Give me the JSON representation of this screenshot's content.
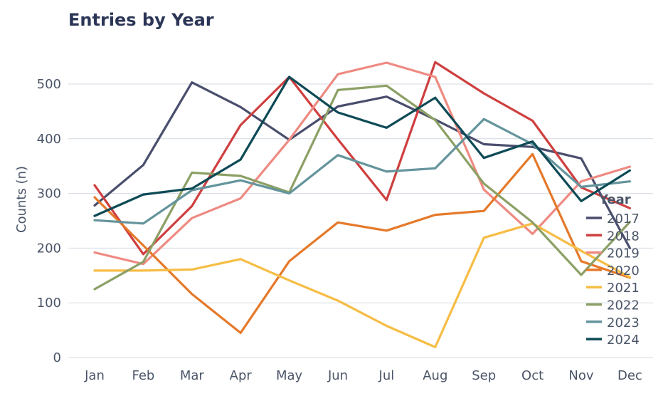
{
  "chart_data": {
    "type": "line",
    "title": "Entries by Year",
    "xlabel": "",
    "ylabel": "Counts (n)",
    "ylim": [
      0,
      560
    ],
    "yticks": [
      0,
      100,
      200,
      300,
      400,
      500
    ],
    "grid": "horizontal",
    "legend_title": "Year",
    "legend_position": "right",
    "categories": [
      "Jan",
      "Feb",
      "Mar",
      "Apr",
      "May",
      "Jun",
      "Jul",
      "Aug",
      "Sep",
      "Oct",
      "Nov",
      "Dec"
    ],
    "series": [
      {
        "name": "2017",
        "color": "#4a4e6d",
        "values": [
          278,
          352,
          503,
          458,
          398,
          459,
          477,
          435,
          390,
          385,
          364,
          200
        ]
      },
      {
        "name": "2018",
        "color": "#cf3f3f",
        "values": [
          315,
          189,
          277,
          425,
          513,
          399,
          288,
          540,
          483,
          433,
          311,
          273
        ]
      },
      {
        "name": "2019",
        "color": "#ee8a82",
        "values": [
          192,
          171,
          255,
          291,
          398,
          518,
          539,
          513,
          307,
          226,
          322,
          349
        ]
      },
      {
        "name": "2020",
        "color": "#e5792a",
        "values": [
          293,
          205,
          116,
          45,
          176,
          247,
          232,
          261,
          268,
          372,
          176,
          146
        ]
      },
      {
        "name": "2021",
        "color": "#f6bd45",
        "values": [
          159,
          159,
          161,
          180,
          141,
          104,
          58,
          19,
          219,
          245,
          195,
          147
        ]
      },
      {
        "name": "2022",
        "color": "#8ca065",
        "values": [
          125,
          175,
          338,
          332,
          302,
          489,
          497,
          434,
          318,
          247,
          151,
          248
        ]
      },
      {
        "name": "2023",
        "color": "#64949c",
        "values": [
          251,
          245,
          306,
          324,
          300,
          370,
          340,
          346,
          436,
          390,
          312,
          322
        ]
      },
      {
        "name": "2024",
        "color": "#0d4a55",
        "values": [
          259,
          298,
          309,
          362,
          513,
          448,
          420,
          475,
          365,
          395,
          286,
          342
        ]
      }
    ]
  }
}
